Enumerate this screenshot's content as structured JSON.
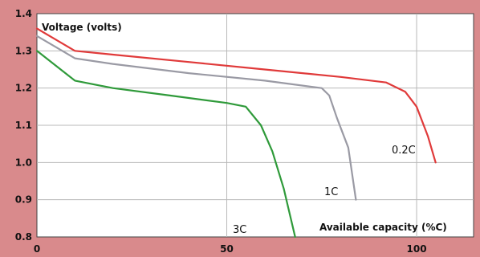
{
  "chart_data": {
    "type": "line",
    "ylabel": "Voltage (volts)",
    "xlabel": "Available capacity (%C)",
    "xlim": [
      0,
      115
    ],
    "ylim": [
      0.8,
      1.4
    ],
    "xticks": [
      "0",
      "50",
      "100"
    ],
    "yticks": [
      "1.4",
      "1.3",
      "1.2",
      "1.1",
      "1.0",
      "0.9",
      "0.8"
    ],
    "grid": true,
    "legend": "none",
    "series": [
      {
        "name": "0.2C",
        "color": "#e03a3a",
        "points": [
          [
            0,
            1.36
          ],
          [
            5,
            1.33
          ],
          [
            10,
            1.3
          ],
          [
            20,
            1.29
          ],
          [
            40,
            1.27
          ],
          [
            60,
            1.25
          ],
          [
            80,
            1.23
          ],
          [
            92,
            1.215
          ],
          [
            97,
            1.19
          ],
          [
            100,
            1.15
          ],
          [
            103,
            1.07
          ],
          [
            105,
            1.0
          ]
        ]
      },
      {
        "name": "1C",
        "color": "#9a9aa4",
        "points": [
          [
            0,
            1.34
          ],
          [
            5,
            1.31
          ],
          [
            10,
            1.28
          ],
          [
            20,
            1.265
          ],
          [
            40,
            1.24
          ],
          [
            60,
            1.22
          ],
          [
            75,
            1.2
          ],
          [
            77,
            1.18
          ],
          [
            79,
            1.12
          ],
          [
            82,
            1.04
          ],
          [
            84,
            0.9
          ]
        ]
      },
      {
        "name": "3C",
        "color": "#2f9a3a",
        "points": [
          [
            0,
            1.3
          ],
          [
            5,
            1.26
          ],
          [
            10,
            1.22
          ],
          [
            20,
            1.2
          ],
          [
            35,
            1.18
          ],
          [
            50,
            1.16
          ],
          [
            55,
            1.15
          ],
          [
            59,
            1.1
          ],
          [
            62,
            1.03
          ],
          [
            65,
            0.93
          ],
          [
            68,
            0.8
          ]
        ]
      }
    ]
  }
}
